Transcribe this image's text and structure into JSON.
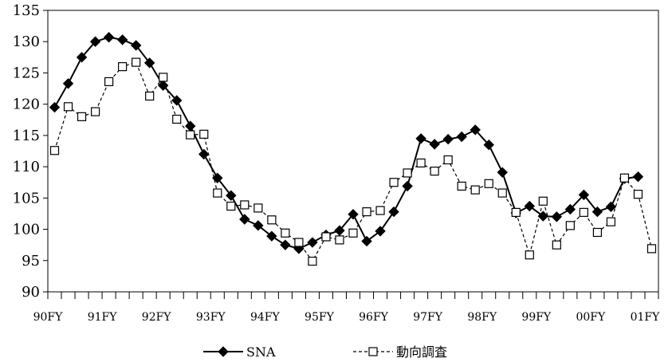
{
  "chart_data": {
    "type": "line",
    "title": "",
    "xlabel": "",
    "ylabel": "",
    "ylim": [
      90,
      135
    ],
    "yticks": [
      90,
      95,
      100,
      105,
      110,
      115,
      120,
      125,
      130,
      135
    ],
    "x_labels": [
      "90FY",
      "91FY",
      "92FY",
      "93FY",
      "94FY",
      "95FY",
      "96FY",
      "97FY",
      "98FY",
      "99FY",
      "00FY",
      "01FY"
    ],
    "legend_position": "bottom",
    "grid": false,
    "series": [
      {
        "name": "SNA",
        "style": "solid",
        "marker": "diamond-filled",
        "color": "#000000",
        "values": [
          119.5,
          123.3,
          127.5,
          130.0,
          130.7,
          130.3,
          129.4,
          126.6,
          123.0,
          120.6,
          116.5,
          112.0,
          108.2,
          105.4,
          101.6,
          100.6,
          98.9,
          97.5,
          96.9,
          97.9,
          99.1,
          99.8,
          102.4,
          98.1,
          99.7,
          102.8,
          106.9,
          114.5,
          113.6,
          114.4,
          114.8,
          115.9,
          113.5,
          109.1,
          102.6,
          103.7,
          102.1,
          102.0,
          103.2,
          105.5,
          102.8,
          103.6,
          108.1,
          108.4
        ]
      },
      {
        "name": "動向調査",
        "style": "dashed",
        "marker": "square-open",
        "color": "#000000",
        "values": [
          112.6,
          119.6,
          118.0,
          118.8,
          123.6,
          126.0,
          126.7,
          121.3,
          124.3,
          117.6,
          115.1,
          115.2,
          105.8,
          103.7,
          103.9,
          103.4,
          101.5,
          99.4,
          97.9,
          94.9,
          98.8,
          98.3,
          99.4,
          102.8,
          103.0,
          107.5,
          109.0,
          110.6,
          109.3,
          111.1,
          106.9,
          106.3,
          107.3,
          105.8,
          102.7,
          95.9,
          104.5,
          97.5,
          100.6,
          102.7,
          99.5,
          101.2,
          108.2,
          105.6,
          96.9
        ]
      }
    ]
  }
}
